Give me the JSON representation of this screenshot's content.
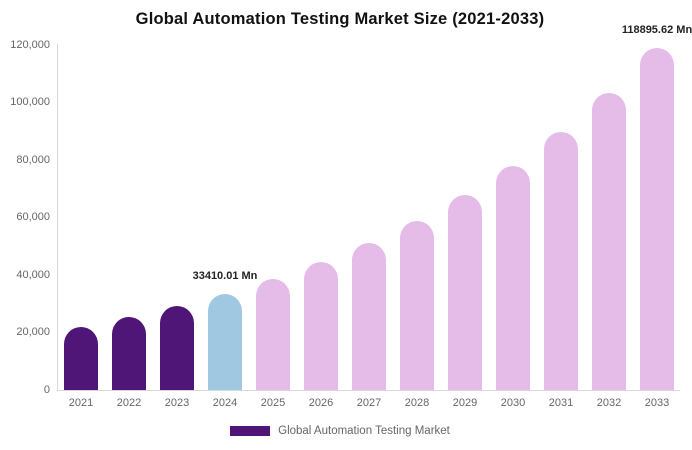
{
  "chart": {
    "title": "Global Automation Testing Market Size (2021-2033)",
    "legend": {
      "label": "Global Automation Testing Market",
      "swatch_color": "#4f1577"
    },
    "colors": {
      "historical_bar": "#4f1577",
      "current_year_bar": "#a0c8e0",
      "forecast_bar": "#e5bce8",
      "axis_line": "#d8d8d8",
      "tick_text": "#666666",
      "title_text": "#111111",
      "value_label_text": "#222222",
      "background": "#ffffff"
    }
  },
  "chart_data": {
    "type": "bar",
    "title": "Global Automation Testing Market Size (2021-2033)",
    "xlabel": "",
    "ylabel": "",
    "value_unit": "Mn",
    "categories": [
      "2021",
      "2022",
      "2023",
      "2024",
      "2025",
      "2026",
      "2027",
      "2028",
      "2029",
      "2030",
      "2031",
      "2032",
      "2033"
    ],
    "values": [
      21884.9,
      25199.6,
      29016.5,
      33410.01,
      38470.6,
      44297.3,
      51006.4,
      58731.9,
      67627.6,
      77870.6,
      89665.2,
      103246.3,
      118895.62
    ],
    "bar_colors": [
      "#4f1577",
      "#4f1577",
      "#4f1577",
      "#a0c8e0",
      "#e5bce8",
      "#e5bce8",
      "#e5bce8",
      "#e5bce8",
      "#e5bce8",
      "#e5bce8",
      "#e5bce8",
      "#e5bce8",
      "#e5bce8"
    ],
    "y_ticks": [
      {
        "label": "120,000",
        "value": 120000
      },
      {
        "label": "100,000",
        "value": 100000
      },
      {
        "label": "80,000",
        "value": 80000
      },
      {
        "label": "60,000",
        "value": 60000
      },
      {
        "label": "40,000",
        "value": 40000
      },
      {
        "label": "20,000",
        "value": 20000
      },
      {
        "label": "0",
        "value": 0
      }
    ],
    "ylim": [
      0,
      120000
    ],
    "grid": false,
    "legend_position": "bottom",
    "annotations": [
      {
        "category": "2024",
        "text": "33410.01 Mn"
      },
      {
        "category": "2033",
        "text": "118895.62 Mn"
      }
    ]
  }
}
